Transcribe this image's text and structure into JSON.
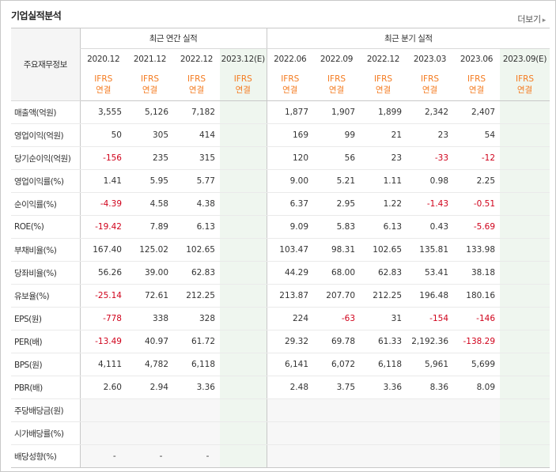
{
  "header": {
    "title": "기업실적분석",
    "more_label": "더보기"
  },
  "table": {
    "row_header": "주요재무정보",
    "groups": {
      "annual": "최근 연간 실적",
      "quarter": "최근 분기 실적"
    },
    "columns": [
      {
        "period": "2020.12",
        "basis1": "IFRS",
        "basis2": "연결"
      },
      {
        "period": "2021.12",
        "basis1": "IFRS",
        "basis2": "연결"
      },
      {
        "period": "2022.12",
        "basis1": "IFRS",
        "basis2": "연결"
      },
      {
        "period": "2023.12(E)",
        "basis1": "IFRS",
        "basis2": "연결"
      },
      {
        "period": "2022.06",
        "basis1": "IFRS",
        "basis2": "연결"
      },
      {
        "period": "2022.09",
        "basis1": "IFRS",
        "basis2": "연결"
      },
      {
        "period": "2022.12",
        "basis1": "IFRS",
        "basis2": "연결"
      },
      {
        "period": "2023.03",
        "basis1": "IFRS",
        "basis2": "연결"
      },
      {
        "period": "2023.06",
        "basis1": "IFRS",
        "basis2": "연결"
      },
      {
        "period": "2023.09(E)",
        "basis1": "IFRS",
        "basis2": "연결"
      }
    ],
    "rows": [
      {
        "label": "매출액(억원)",
        "values": [
          "3,555",
          "5,126",
          "7,182",
          "",
          "1,877",
          "1,907",
          "1,899",
          "2,342",
          "2,407",
          ""
        ]
      },
      {
        "label": "영업이익(억원)",
        "values": [
          "50",
          "305",
          "414",
          "",
          "169",
          "99",
          "21",
          "23",
          "54",
          ""
        ]
      },
      {
        "label": "당기순이익(억원)",
        "values": [
          "-156",
          "235",
          "315",
          "",
          "120",
          "56",
          "23",
          "-33",
          "-12",
          ""
        ]
      },
      {
        "label": "영업이익률(%)",
        "values": [
          "1.41",
          "5.95",
          "5.77",
          "",
          "9.00",
          "5.21",
          "1.11",
          "0.98",
          "2.25",
          ""
        ]
      },
      {
        "label": "순이익률(%)",
        "values": [
          "-4.39",
          "4.58",
          "4.38",
          "",
          "6.37",
          "2.95",
          "1.22",
          "-1.43",
          "-0.51",
          ""
        ]
      },
      {
        "label": "ROE(%)",
        "values": [
          "-19.42",
          "7.89",
          "6.13",
          "",
          "9.09",
          "5.83",
          "6.13",
          "0.43",
          "-5.69",
          ""
        ]
      },
      {
        "label": "부채비율(%)",
        "values": [
          "167.40",
          "125.02",
          "102.65",
          "",
          "103.47",
          "98.31",
          "102.65",
          "135.81",
          "133.98",
          ""
        ]
      },
      {
        "label": "당좌비율(%)",
        "values": [
          "56.26",
          "39.00",
          "62.83",
          "",
          "44.29",
          "68.00",
          "62.83",
          "53.41",
          "38.18",
          ""
        ]
      },
      {
        "label": "유보율(%)",
        "values": [
          "-25.14",
          "72.61",
          "212.25",
          "",
          "213.87",
          "207.70",
          "212.25",
          "196.48",
          "180.16",
          ""
        ]
      },
      {
        "label": "EPS(원)",
        "values": [
          "-778",
          "338",
          "328",
          "",
          "224",
          "-63",
          "31",
          "-154",
          "-146",
          ""
        ]
      },
      {
        "label": "PER(배)",
        "values": [
          "-13.49",
          "40.97",
          "61.72",
          "",
          "29.32",
          "69.78",
          "61.33",
          "2,192.36",
          "-138.29",
          ""
        ]
      },
      {
        "label": "BPS(원)",
        "values": [
          "4,111",
          "4,782",
          "6,118",
          "",
          "6,141",
          "6,072",
          "6,118",
          "5,961",
          "5,699",
          ""
        ]
      },
      {
        "label": "PBR(배)",
        "values": [
          "2.60",
          "2.94",
          "3.36",
          "",
          "2.48",
          "3.75",
          "3.36",
          "8.36",
          "8.09",
          ""
        ]
      },
      {
        "label": "주당배당금(원)",
        "values": [
          "",
          "",
          "",
          "",
          "",
          "",
          "",
          "",
          "",
          ""
        ]
      },
      {
        "label": "시가배당률(%)",
        "values": [
          "",
          "",
          "",
          "",
          "",
          "",
          "",
          "",
          "",
          ""
        ]
      },
      {
        "label": "배당성향(%)",
        "values": [
          "-",
          "-",
          "-",
          "",
          "",
          "",
          "",
          "",
          "",
          ""
        ]
      }
    ]
  },
  "colors": {
    "ifrs": "#f47b20",
    "negative": "#d0021b",
    "estimate_bg": "#eff6ef"
  }
}
